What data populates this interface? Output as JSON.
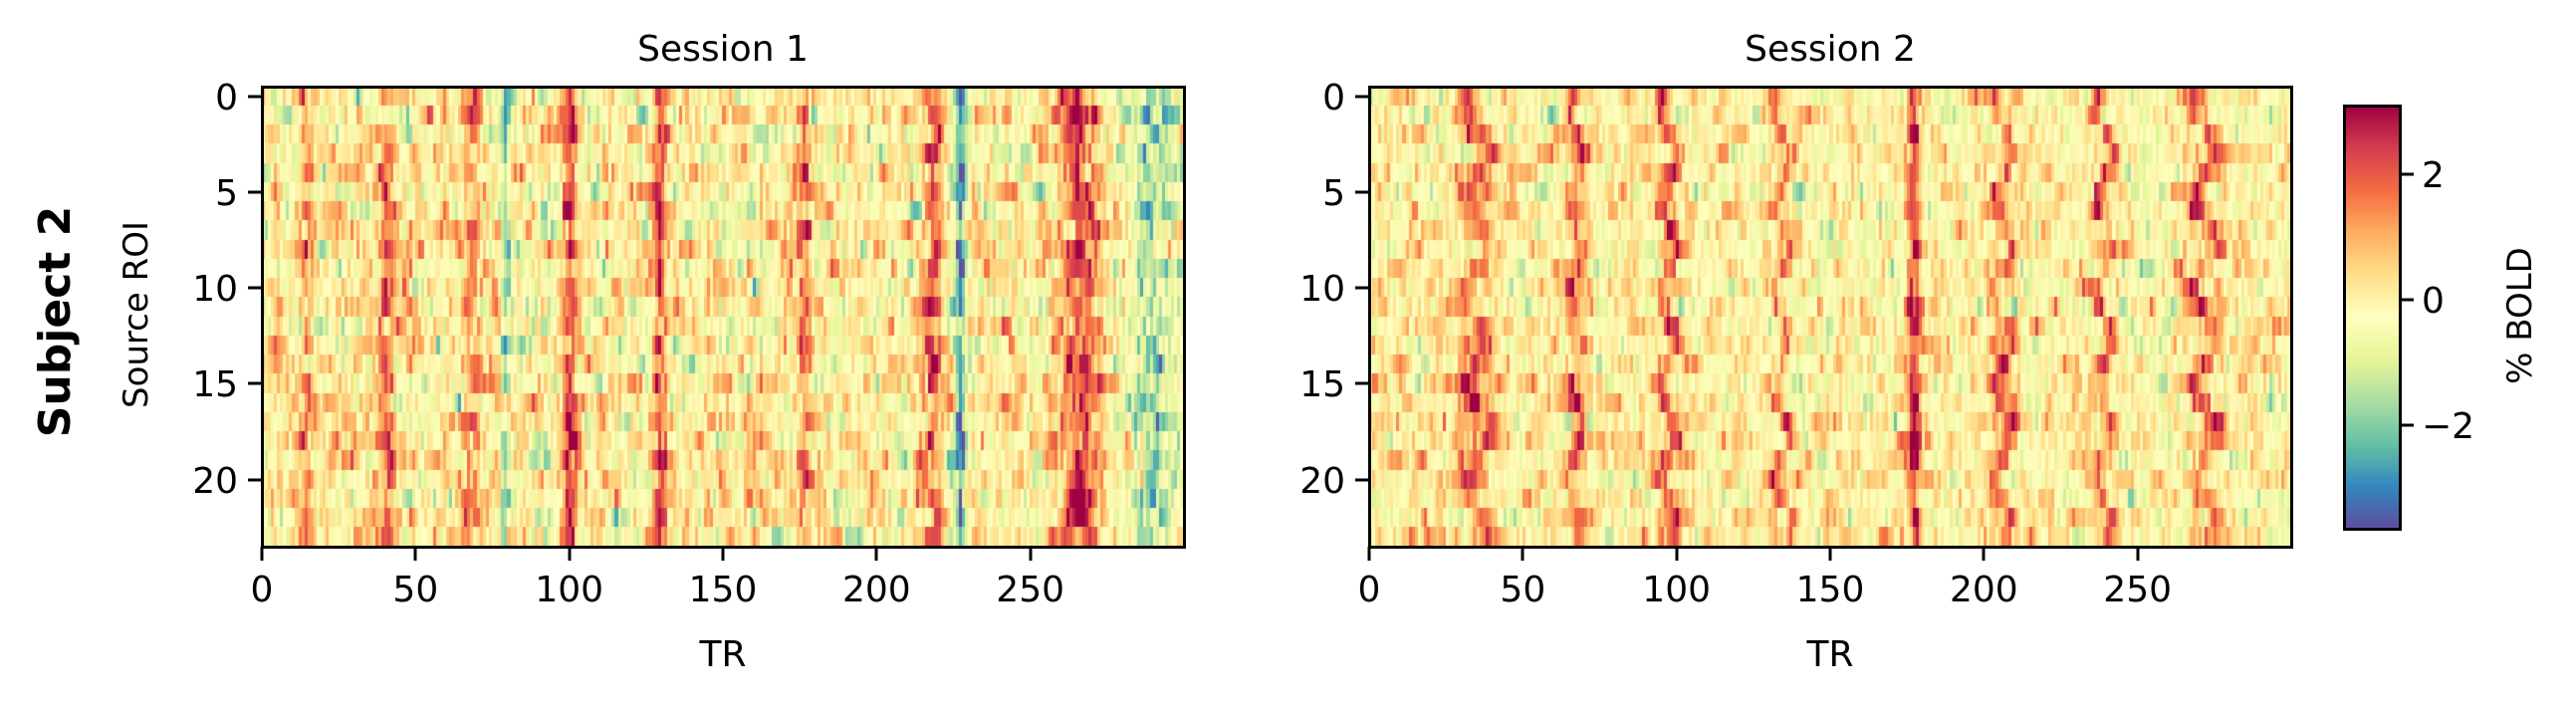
{
  "figure": {
    "row_label": "Subject 2",
    "colorbar": {
      "label": "% BOLD",
      "ticks": [
        2,
        0,
        -2
      ],
      "tick_labels": [
        "2",
        "0",
        "−2"
      ],
      "vmin": -3.65,
      "vmax": 3.1,
      "colormap": "Spectral_r"
    },
    "panels": [
      {
        "title": "Session 1",
        "xlabel": "TR",
        "ylabel": "Source ROI",
        "xticks": [
          0,
          50,
          100,
          150,
          200,
          250
        ],
        "xtick_labels": [
          "0",
          "50",
          "100",
          "150",
          "200",
          "250"
        ],
        "yticks": [
          0,
          5,
          10,
          15,
          20
        ],
        "ytick_labels": [
          "0",
          "5",
          "10",
          "15",
          "20"
        ]
      },
      {
        "title": "Session 2",
        "xlabel": "TR",
        "ylabel": "",
        "xticks": [
          0,
          50,
          100,
          150,
          200,
          250
        ],
        "xtick_labels": [
          "0",
          "50",
          "100",
          "150",
          "200",
          "250"
        ],
        "yticks": [
          0,
          5,
          10,
          15,
          20
        ],
        "ytick_labels": [
          "0",
          "5",
          "10",
          "15",
          "20"
        ]
      }
    ]
  },
  "chart_data": [
    {
      "type": "heatmap",
      "title": "Session 1",
      "row_label": "Subject 2",
      "xlabel": "TR",
      "ylabel": "Source ROI",
      "n_cols": 300,
      "n_rows": 24,
      "xlim": [
        0,
        300
      ],
      "ylim": [
        23.5,
        -0.5
      ],
      "xticks": [
        0,
        50,
        100,
        150,
        200,
        250
      ],
      "yticks": [
        0,
        5,
        10,
        15,
        20
      ],
      "colorbar": {
        "label": "% BOLD",
        "vmin": -3.65,
        "vmax": 3.1,
        "ticks": [
          -2,
          0,
          2
        ],
        "cmap": "Spectral_r"
      },
      "features": {
        "positive_stripes": [
          {
            "tr": 14,
            "width": 3,
            "amp": 1.4
          },
          {
            "tr": 40,
            "width": 3,
            "amp": 1.6
          },
          {
            "tr": 68,
            "width": 3,
            "amp": 1.5
          },
          {
            "tr": 100,
            "width": 2.5,
            "amp": 2.0
          },
          {
            "tr": 129,
            "width": 2.5,
            "amp": 2.0
          },
          {
            "tr": 176,
            "width": 2.5,
            "amp": 1.9
          },
          {
            "tr": 218,
            "width": 3,
            "amp": 1.8
          },
          {
            "tr": 266,
            "width": 7,
            "amp": 2.1
          }
        ],
        "negative_stripes": [
          {
            "tr": 79,
            "width": 1.5,
            "amp": -1.8
          },
          {
            "tr": 227,
            "width": 2,
            "amp": -2.6
          },
          {
            "tr": 290,
            "width": 10,
            "amp": -1.4
          }
        ],
        "noise_sd": 0.9,
        "seed": 11
      }
    },
    {
      "type": "heatmap",
      "title": "Session 2",
      "xlabel": "TR",
      "ylabel": "Source ROI",
      "n_cols": 300,
      "n_rows": 24,
      "xlim": [
        0,
        300
      ],
      "ylim": [
        23.5,
        -0.5
      ],
      "xticks": [
        0,
        50,
        100,
        150,
        200,
        250
      ],
      "yticks": [
        0,
        5,
        10,
        15,
        20
      ],
      "colorbar": {
        "label": "% BOLD",
        "vmin": -3.65,
        "vmax": 3.1,
        "ticks": [
          -2,
          0,
          2
        ],
        "cmap": "Spectral_r"
      },
      "features": {
        "positive_stripes": [
          {
            "tr": 35,
            "width": 4,
            "amp": 2.1,
            "zigzag": 4
          },
          {
            "tr": 67,
            "width": 2.5,
            "amp": 2.0,
            "zigzag": 2
          },
          {
            "tr": 97,
            "width": 2.5,
            "amp": 2.4,
            "zigzag": 3
          },
          {
            "tr": 134,
            "width": 2.5,
            "amp": 1.8,
            "zigzag": 3
          },
          {
            "tr": 177,
            "width": 2,
            "amp": 2.7,
            "zigzag": 0.5
          },
          {
            "tr": 206,
            "width": 2.5,
            "amp": 2.2,
            "zigzag": 3
          },
          {
            "tr": 239,
            "width": 2.5,
            "amp": 2.1,
            "zigzag": 3
          },
          {
            "tr": 272,
            "width": 3,
            "amp": 2.1,
            "zigzag": 4
          }
        ],
        "negative_stripes": [],
        "noise_sd": 0.75,
        "seed": 29
      }
    }
  ]
}
